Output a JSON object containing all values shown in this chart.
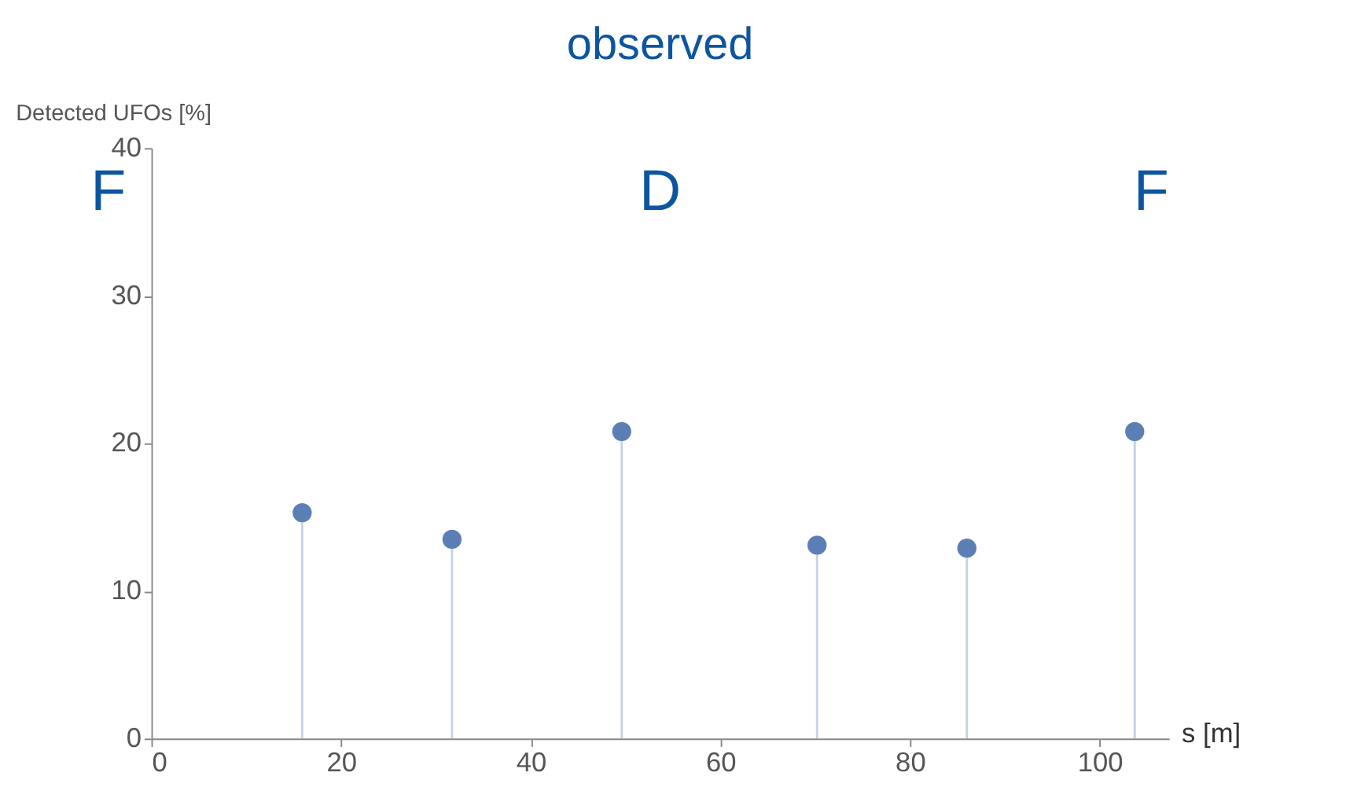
{
  "chart_data": {
    "type": "lollipop",
    "title": "observed",
    "xlabel": "s [m]",
    "ylabel": "Detected UFOs [%]",
    "annotations": [
      "F",
      "D",
      "F"
    ],
    "x": [
      15.9,
      31.7,
      49.6,
      70.2,
      86.0,
      103.7
    ],
    "series": [
      {
        "color": "#5b7fb5",
        "values": [
          15.3,
          13.5,
          20.8,
          13.1,
          12.9,
          20.8
        ]
      }
    ],
    "xlim": [
      0,
      107.3
    ],
    "xticks": [
      0,
      20,
      40,
      60,
      80,
      100
    ],
    "ylim": [
      0,
      40
    ],
    "yticks": [
      0,
      10,
      20,
      30,
      40
    ],
    "grid": false,
    "marker": "circle"
  }
}
